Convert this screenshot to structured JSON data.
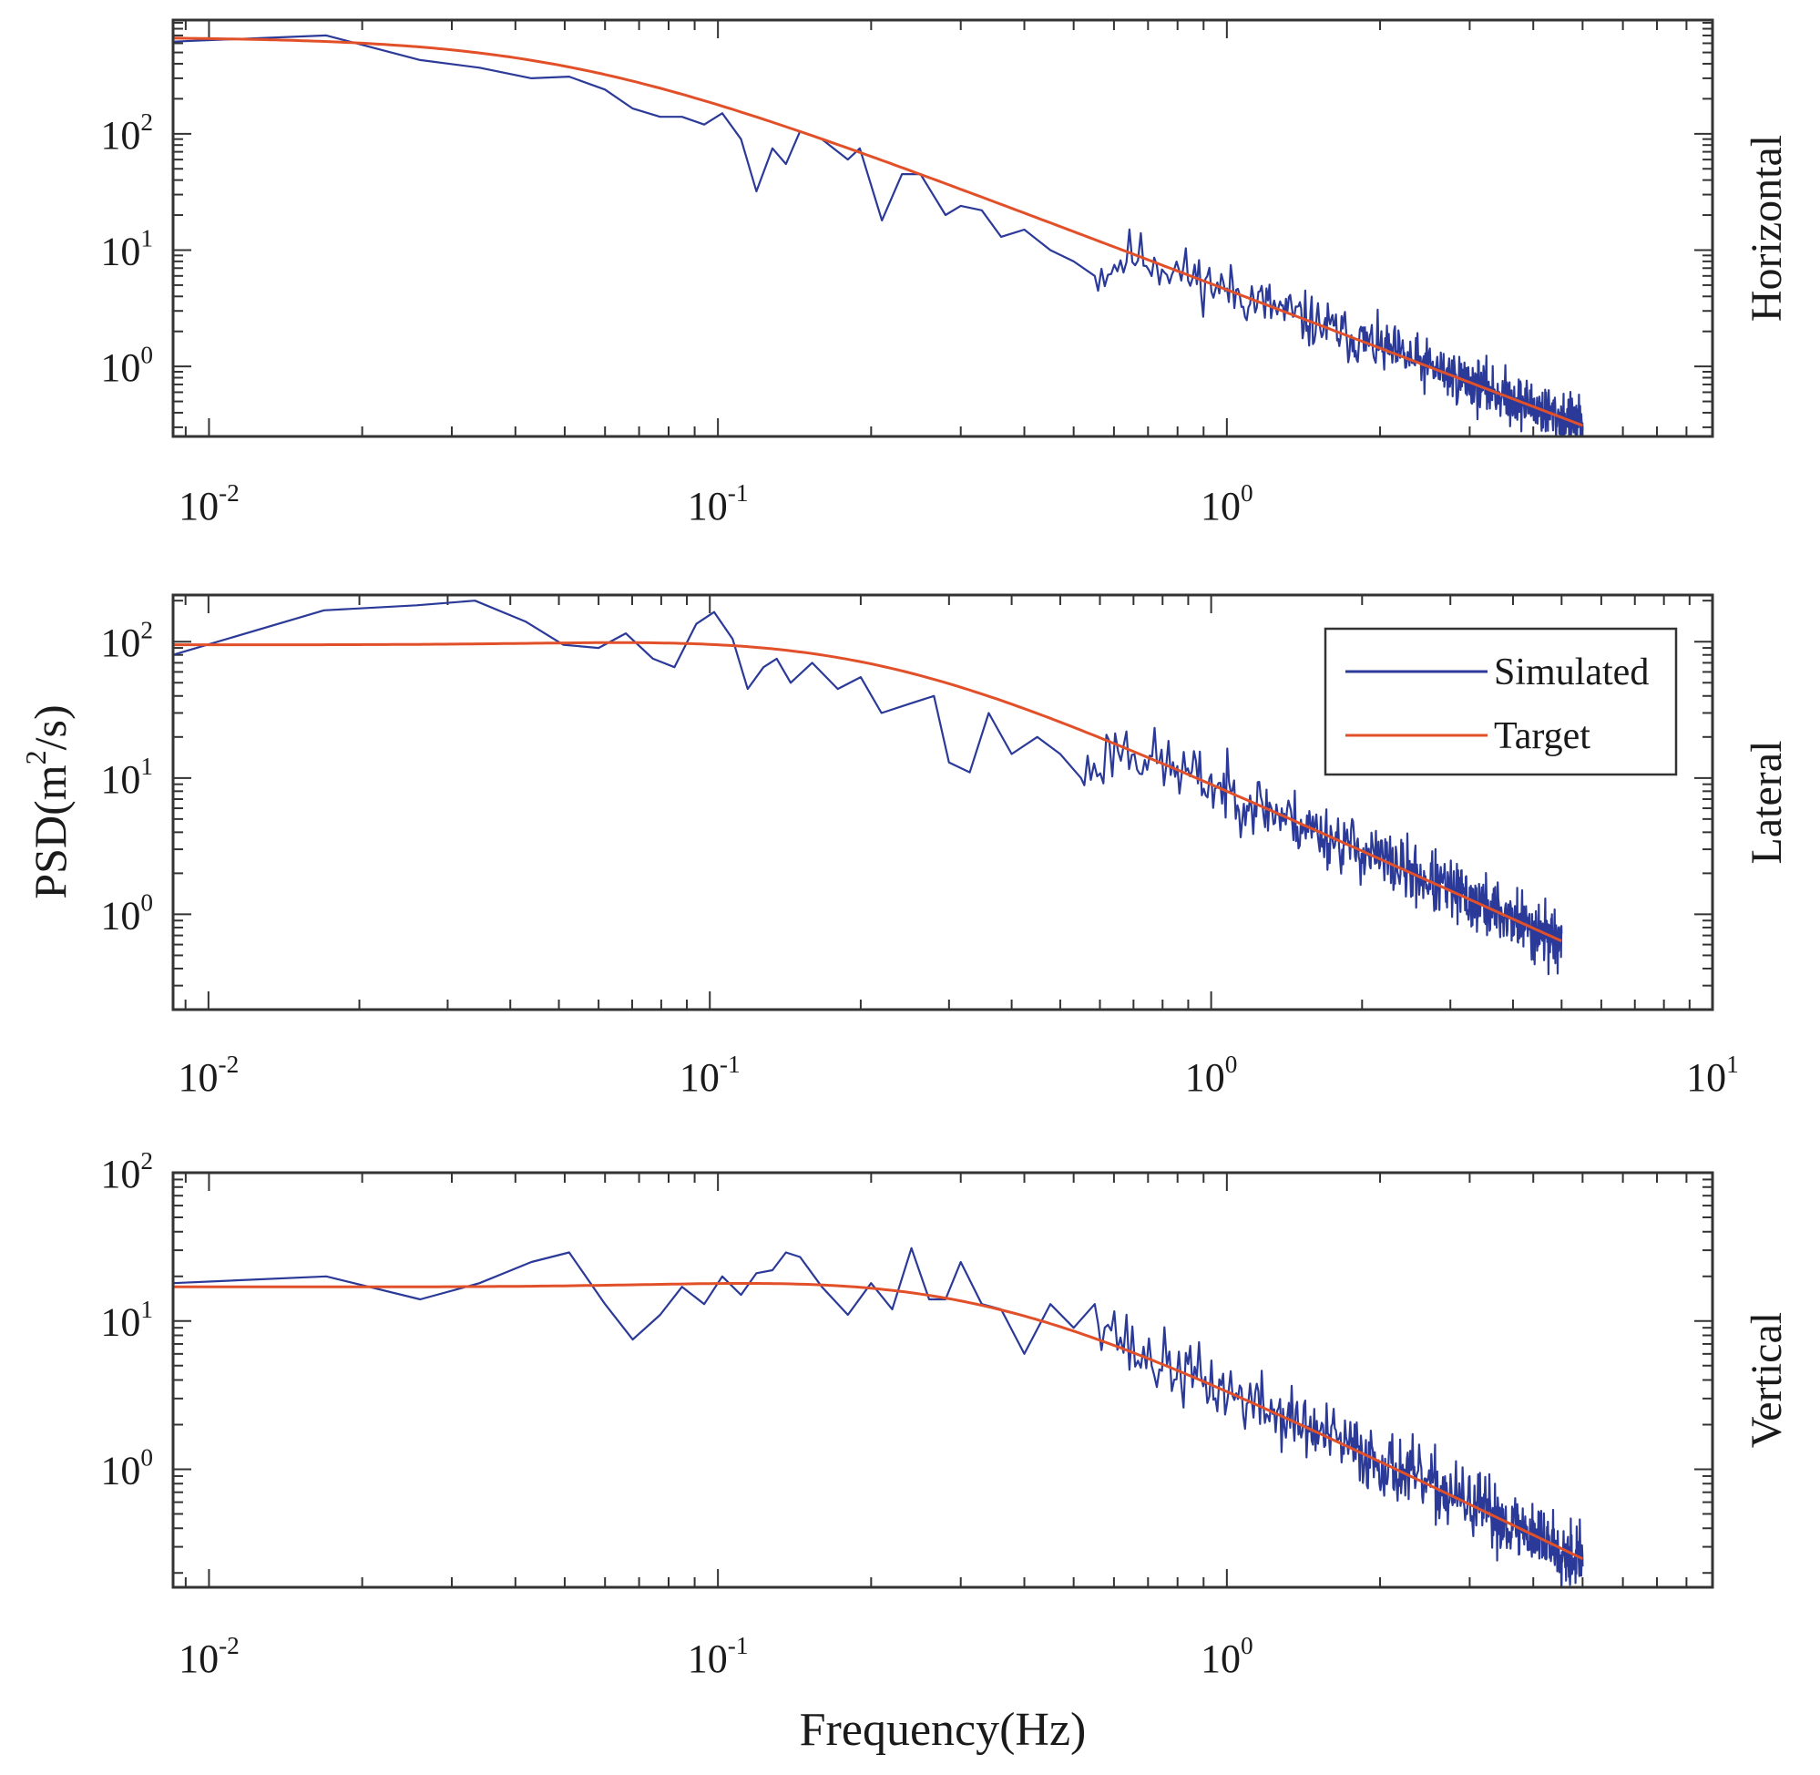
{
  "chart_data": {
    "type": "line",
    "ylabel": "PSD(m²/s)",
    "ylabel_base": "PSD(m",
    "ylabel_exp": "2",
    "ylabel_tail": "/s)",
    "xlabel": "Frequency(Hz)",
    "xscale": "log",
    "yscale": "log",
    "colors": {
      "simulated": "#2b3a98",
      "target": "#e2502a"
    },
    "legend": {
      "location": "top-right",
      "panel": 1,
      "entries": [
        "Simulated",
        "Target"
      ]
    },
    "panels": [
      {
        "name": "Horizontal",
        "xlim": [
          0.0085,
          9.0
        ],
        "ylim": [
          0.25,
          950
        ],
        "xticks": [
          {
            "base": "10",
            "exp": "-2",
            "value": 0.01
          },
          {
            "base": "10",
            "exp": "-1",
            "value": 0.1
          },
          {
            "base": "10",
            "exp": "0",
            "value": 1
          }
        ],
        "yticks": [
          {
            "base": "10",
            "exp": "2",
            "value": 100
          },
          {
            "base": "10",
            "exp": "1",
            "value": 10
          },
          {
            "base": "10",
            "exp": "0",
            "value": 1
          }
        ],
        "target": {
          "amp": 680,
          "fc": 0.05,
          "slope": 1.67,
          "flat_gain": 1.0,
          "fmax": 5.0
        },
        "simulated_anchors": [
          [
            0.0085,
            620
          ],
          [
            0.017,
            700
          ],
          [
            0.026,
            430
          ],
          [
            0.034,
            370
          ],
          [
            0.043,
            300
          ],
          [
            0.051,
            310
          ],
          [
            0.06,
            240
          ],
          [
            0.068,
            165
          ],
          [
            0.077,
            140
          ],
          [
            0.085,
            140
          ],
          [
            0.094,
            120
          ],
          [
            0.102,
            150
          ],
          [
            0.111,
            90
          ],
          [
            0.119,
            32
          ],
          [
            0.128,
            75
          ],
          [
            0.136,
            55
          ],
          [
            0.145,
            105
          ],
          [
            0.16,
            90
          ],
          [
            0.18,
            60
          ],
          [
            0.19,
            75
          ],
          [
            0.21,
            18
          ],
          [
            0.23,
            45
          ],
          [
            0.25,
            45
          ],
          [
            0.28,
            20
          ],
          [
            0.3,
            24
          ],
          [
            0.33,
            22
          ],
          [
            0.36,
            13
          ],
          [
            0.4,
            15
          ],
          [
            0.45,
            10
          ],
          [
            0.5,
            8
          ],
          [
            0.55,
            6
          ]
        ],
        "noise": 0.26,
        "seed": 11
      },
      {
        "name": "Lateral",
        "xlim": [
          0.0085,
          10.0
        ],
        "ylim": [
          0.2,
          220
        ],
        "xticks": [
          {
            "base": "10",
            "exp": "-2",
            "value": 0.01
          },
          {
            "base": "10",
            "exp": "-1",
            "value": 0.1
          },
          {
            "base": "10",
            "exp": "0",
            "value": 1
          },
          {
            "base": "10",
            "exp": "1",
            "value": 10
          }
        ],
        "yticks": [
          {
            "base": "10",
            "exp": "2",
            "value": 100
          },
          {
            "base": "10",
            "exp": "1",
            "value": 10
          },
          {
            "base": "10",
            "exp": "0",
            "value": 1
          }
        ],
        "target": {
          "amp": 95,
          "fc": 0.25,
          "slope": 1.67,
          "flat_gain": 1.15,
          "fmax": 5.0
        },
        "simulated_anchors": [
          [
            0.0085,
            80
          ],
          [
            0.017,
            170
          ],
          [
            0.026,
            185
          ],
          [
            0.034,
            200
          ],
          [
            0.043,
            140
          ],
          [
            0.051,
            95
          ],
          [
            0.06,
            90
          ],
          [
            0.068,
            115
          ],
          [
            0.077,
            75
          ],
          [
            0.085,
            65
          ],
          [
            0.094,
            135
          ],
          [
            0.102,
            165
          ],
          [
            0.111,
            105
          ],
          [
            0.119,
            45
          ],
          [
            0.128,
            65
          ],
          [
            0.136,
            75
          ],
          [
            0.145,
            50
          ],
          [
            0.16,
            70
          ],
          [
            0.18,
            45
          ],
          [
            0.2,
            55
          ],
          [
            0.22,
            30
          ],
          [
            0.25,
            35
          ],
          [
            0.28,
            40
          ],
          [
            0.3,
            13
          ],
          [
            0.33,
            11
          ],
          [
            0.36,
            30
          ],
          [
            0.4,
            15
          ],
          [
            0.45,
            20
          ],
          [
            0.5,
            15
          ],
          [
            0.55,
            10
          ]
        ],
        "noise": 0.26,
        "seed": 23
      },
      {
        "name": "Vertical",
        "xlim": [
          0.0085,
          9.0
        ],
        "ylim": [
          0.16,
          100
        ],
        "xticks": [
          {
            "base": "10",
            "exp": "-2",
            "value": 0.01
          },
          {
            "base": "10",
            "exp": "-1",
            "value": 0.1
          },
          {
            "base": "10",
            "exp": "0",
            "value": 1
          }
        ],
        "yticks": [
          {
            "base": "10",
            "exp": "2",
            "value": 100
          },
          {
            "base": "10",
            "exp": "1",
            "value": 10
          },
          {
            "base": "10",
            "exp": "0",
            "value": 1
          }
        ],
        "target": {
          "amp": 17,
          "fc": 0.4,
          "slope": 1.67,
          "flat_gain": 1.18,
          "fmax": 5.0
        },
        "simulated_anchors": [
          [
            0.0085,
            18
          ],
          [
            0.017,
            20
          ],
          [
            0.026,
            14
          ],
          [
            0.034,
            18
          ],
          [
            0.043,
            25
          ],
          [
            0.051,
            29
          ],
          [
            0.06,
            13
          ],
          [
            0.068,
            7.5
          ],
          [
            0.077,
            11
          ],
          [
            0.085,
            17
          ],
          [
            0.094,
            13
          ],
          [
            0.102,
            20
          ],
          [
            0.111,
            15
          ],
          [
            0.119,
            21
          ],
          [
            0.128,
            22
          ],
          [
            0.136,
            29
          ],
          [
            0.145,
            27
          ],
          [
            0.16,
            17
          ],
          [
            0.18,
            11
          ],
          [
            0.2,
            18
          ],
          [
            0.22,
            12
          ],
          [
            0.24,
            31
          ],
          [
            0.26,
            14
          ],
          [
            0.28,
            14
          ],
          [
            0.3,
            25
          ],
          [
            0.33,
            13
          ],
          [
            0.36,
            12
          ],
          [
            0.4,
            6
          ],
          [
            0.45,
            13
          ],
          [
            0.5,
            9
          ],
          [
            0.55,
            13
          ]
        ],
        "noise": 0.26,
        "seed": 37
      }
    ]
  }
}
